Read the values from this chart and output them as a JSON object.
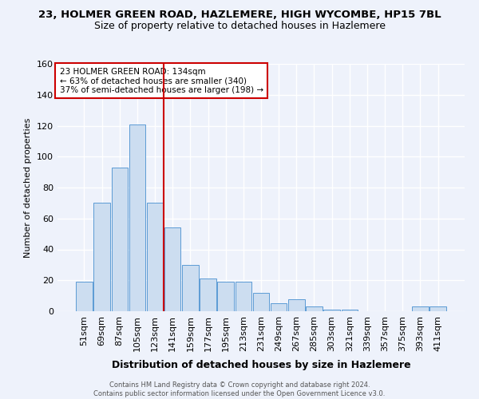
{
  "title1": "23, HOLMER GREEN ROAD, HAZLEMERE, HIGH WYCOMBE, HP15 7BL",
  "title2": "Size of property relative to detached houses in Hazlemere",
  "xlabel": "Distribution of detached houses by size in Hazlemere",
  "ylabel": "Number of detached properties",
  "footer1": "Contains HM Land Registry data © Crown copyright and database right 2024.",
  "footer2": "Contains public sector information licensed under the Open Government Licence v3.0.",
  "bar_labels": [
    "51sqm",
    "69sqm",
    "87sqm",
    "105sqm",
    "123sqm",
    "141sqm",
    "159sqm",
    "177sqm",
    "195sqm",
    "213sqm",
    "231sqm",
    "249sqm",
    "267sqm",
    "285sqm",
    "303sqm",
    "321sqm",
    "339sqm",
    "357sqm",
    "375sqm",
    "393sqm",
    "411sqm"
  ],
  "bar_values": [
    19,
    70,
    93,
    121,
    70,
    54,
    30,
    21,
    19,
    19,
    12,
    5,
    8,
    3,
    1,
    1,
    0,
    0,
    0,
    3,
    3
  ],
  "bar_color": "#ccddf0",
  "bar_edge_color": "#5b9bd5",
  "vline_x": 4.5,
  "vline_color": "#cc0000",
  "annotation_line1": "23 HOLMER GREEN ROAD: 134sqm",
  "annotation_line2": "← 63% of detached houses are smaller (340)",
  "annotation_line3": "37% of semi-detached houses are larger (198) →",
  "annotation_box_color": "white",
  "annotation_box_edge": "#cc0000",
  "ylim": [
    0,
    160
  ],
  "yticks": [
    0,
    20,
    40,
    60,
    80,
    100,
    120,
    140,
    160
  ],
  "background_color": "#eef2fb",
  "grid_color": "white",
  "title1_fontsize": 9.5,
  "title2_fontsize": 9,
  "xlabel_fontsize": 9,
  "ylabel_fontsize": 8,
  "tick_fontsize": 8,
  "annotation_fontsize": 7.5,
  "footer_fontsize": 6
}
